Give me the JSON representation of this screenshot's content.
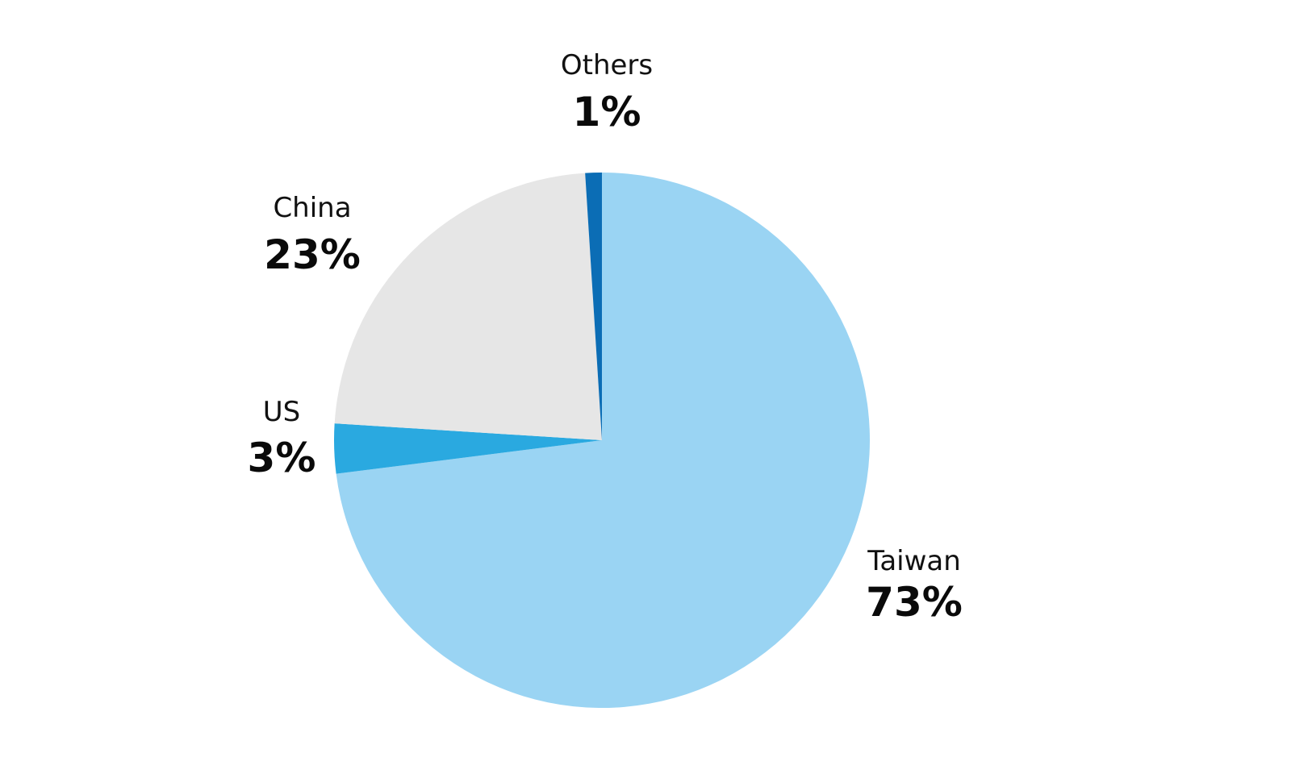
{
  "chart_data": {
    "type": "pie",
    "slices": [
      {
        "label": "Taiwan",
        "value": 73,
        "value_label": "73%",
        "color": "#9ad4f3"
      },
      {
        "label": "US",
        "value": 3,
        "value_label": "3%",
        "color": "#2aa9e0"
      },
      {
        "label": "China",
        "value": 23,
        "value_label": "23%",
        "color": "#e6e6e6"
      },
      {
        "label": "Others",
        "value": 1,
        "value_label": "1%",
        "color": "#0b6db5"
      }
    ],
    "start_angle_degrees": 0,
    "direction": "clockwise",
    "legend": "none",
    "data_labels": "outside"
  }
}
